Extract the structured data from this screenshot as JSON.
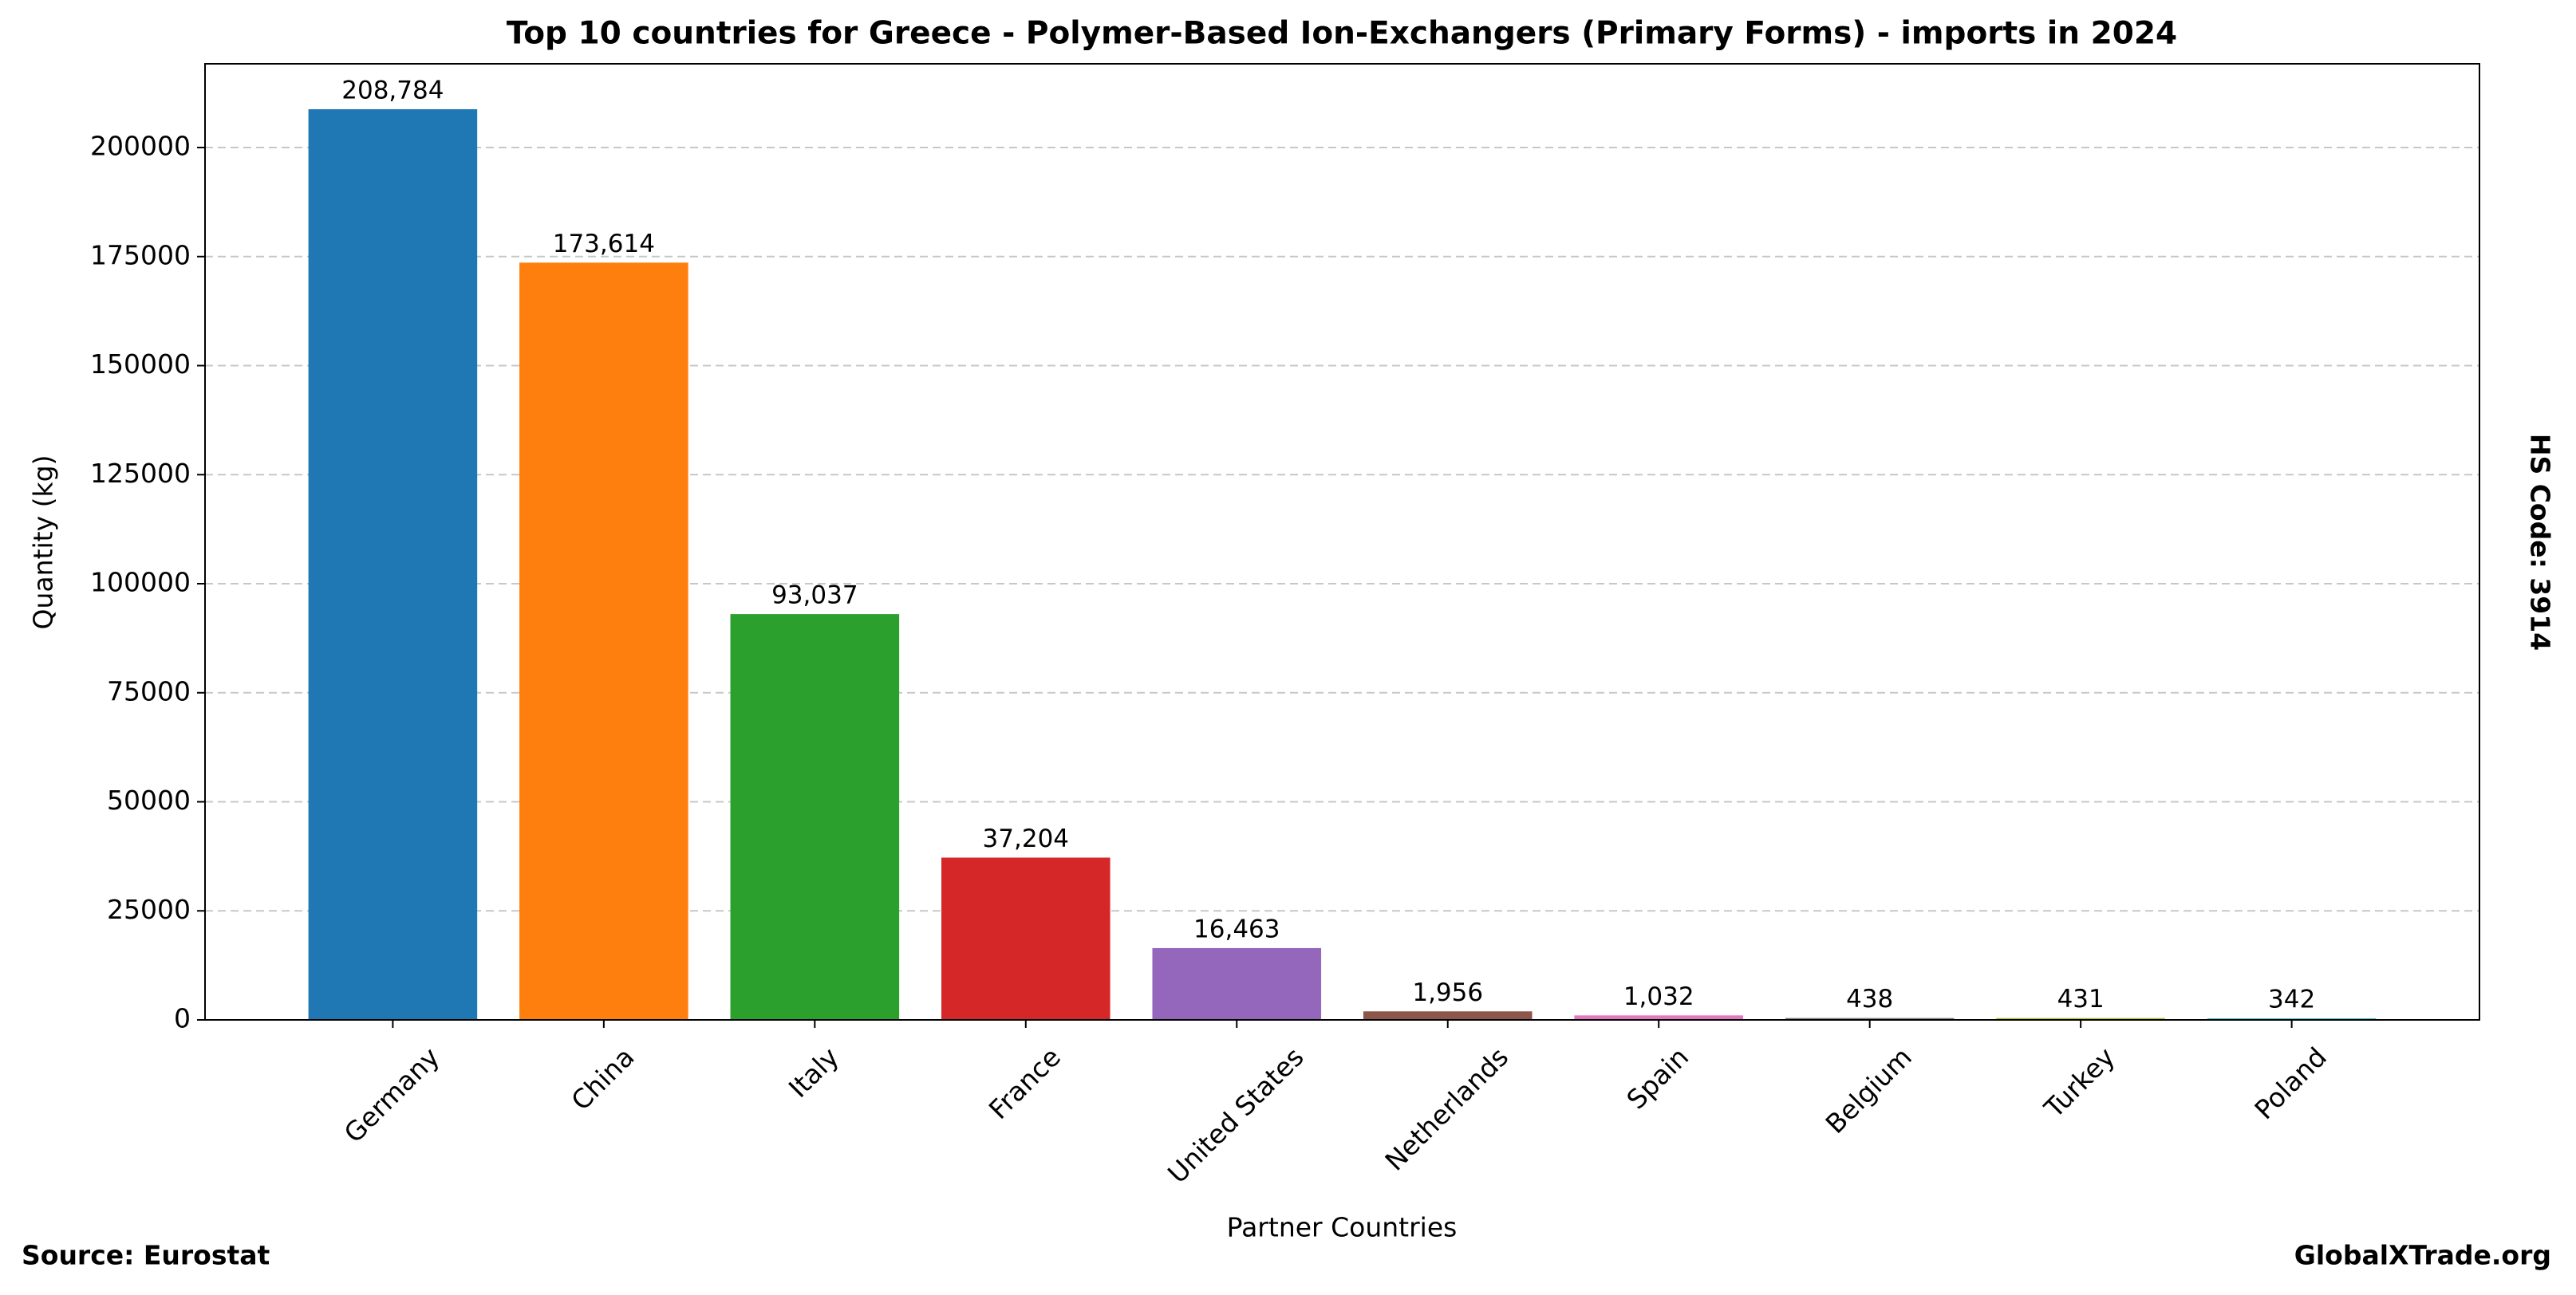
{
  "chart_data": {
    "type": "bar",
    "title": "Top 10 countries for Greece - Polymer-Based Ion-Exchangers (Primary Forms) - imports in 2024",
    "x_label": "Partner Countries",
    "y_label": "Quantity (kg)",
    "side_note": "HS Code: 3914",
    "source": "Source: Eurostat",
    "site": "GlobalXTrade.org",
    "categories": [
      "Germany",
      "China",
      "Italy",
      "France",
      "United States",
      "Netherlands",
      "Spain",
      "Belgium",
      "Turkey",
      "Poland"
    ],
    "values": [
      208784,
      173614,
      93037,
      37204,
      16463,
      1956,
      1032,
      438,
      431,
      342
    ],
    "value_labels": [
      "208,784",
      "173,614",
      "93,037",
      "37,204",
      "16,463",
      "1,956",
      "1,032",
      "438",
      "431",
      "342"
    ],
    "colors": [
      "#1f77b4",
      "#ff7f0e",
      "#2ca02c",
      "#d62728",
      "#9467bd",
      "#8c564b",
      "#e377c2",
      "#7f7f7f",
      "#bcbd22",
      "#17becf"
    ],
    "ylim": [
      0,
      219200
    ],
    "yticks": [
      0,
      25000,
      50000,
      75000,
      100000,
      125000,
      150000,
      175000,
      200000
    ],
    "grid": true
  }
}
